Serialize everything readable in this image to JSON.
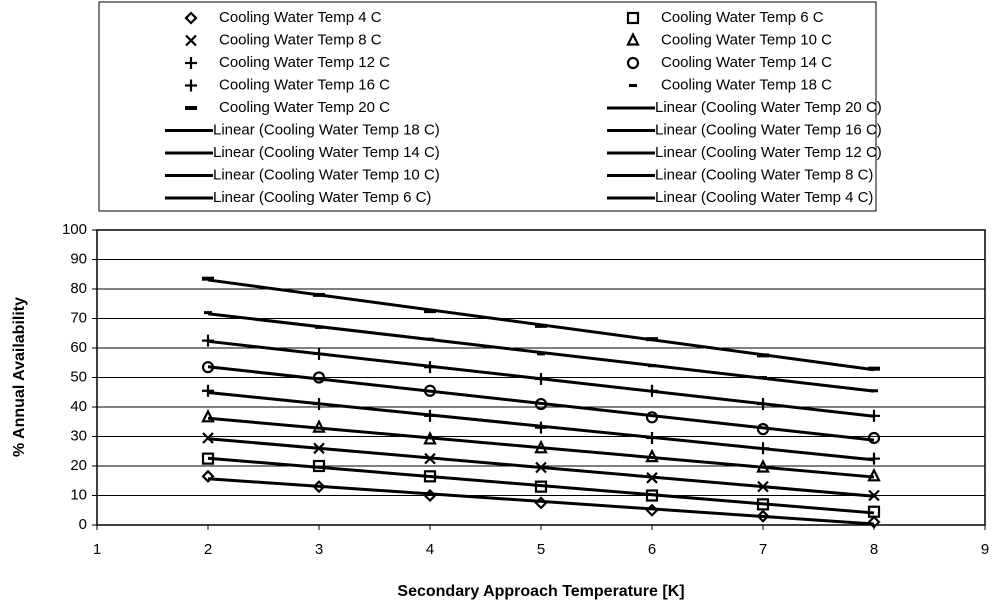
{
  "chart_data": {
    "type": "scatter",
    "x_label": "Secondary Approach Temperature [K]",
    "y_label": "% Annual Availability",
    "x": [
      2,
      3,
      4,
      5,
      6,
      7,
      8
    ],
    "xlim": [
      1,
      9
    ],
    "xticks": [
      1,
      2,
      3,
      4,
      5,
      6,
      7,
      8,
      9
    ],
    "ylim": [
      0,
      100
    ],
    "yticks": [
      0,
      10,
      20,
      30,
      40,
      50,
      60,
      70,
      80,
      90,
      100
    ],
    "grid": true,
    "trendline": "linear",
    "legend": "top",
    "series": [
      {
        "name": "Cooling Water Temp 4 C",
        "trendline_name": "Linear (Cooling Water Temp 4 C)",
        "marker": "diamond",
        "color": "#000000",
        "values": [
          16.5,
          13,
          10,
          7.5,
          5,
          3,
          1
        ]
      },
      {
        "name": "Cooling Water Temp 6 C",
        "trendline_name": "Linear (Cooling Water Temp 6 C)",
        "marker": "square",
        "color": "#000000",
        "values": [
          22.5,
          20,
          16.5,
          13,
          10,
          7,
          4.5
        ]
      },
      {
        "name": "Cooling Water Temp 8 C",
        "trendline_name": "Linear (Cooling Water Temp 8 C)",
        "marker": "x",
        "color": "#000000",
        "values": [
          29.5,
          26,
          22.5,
          19.5,
          16,
          13,
          10
        ]
      },
      {
        "name": "Cooling Water Temp 10 C",
        "trendline_name": "Linear (Cooling Water Temp 10 C)",
        "marker": "triangle",
        "color": "#000000",
        "values": [
          36.5,
          33,
          29,
          26,
          23,
          19.5,
          16.5
        ]
      },
      {
        "name": "Cooling Water Temp 12 C",
        "trendline_name": "Linear (Cooling Water Temp 12 C)",
        "marker": "plus",
        "color": "#000000",
        "values": [
          45.5,
          41,
          37,
          33,
          29.5,
          26,
          22.5
        ]
      },
      {
        "name": "Cooling Water Temp 14 C",
        "trendline_name": "Linear (Cooling Water Temp 14 C)",
        "marker": "circle",
        "color": "#000000",
        "values": [
          53.5,
          50,
          45.5,
          41,
          36.5,
          32.5,
          29.5
        ]
      },
      {
        "name": "Cooling Water Temp 16 C",
        "trendline_name": "Linear (Cooling Water Temp 16 C)",
        "marker": "plus",
        "color": "#000000",
        "values": [
          62.5,
          58,
          53.5,
          49.5,
          45.5,
          41,
          37
        ]
      },
      {
        "name": "Cooling Water Temp 18 C",
        "trendline_name": "Linear (Cooling Water Temp 18 C)",
        "marker": "dash-small",
        "color": "#000000",
        "values": [
          72,
          67,
          63,
          58,
          54,
          50,
          45.5
        ]
      },
      {
        "name": "Cooling Water Temp 20 C",
        "trendline_name": "Linear (Cooling Water Temp 20 C)",
        "marker": "dash",
        "color": "#000000",
        "values": [
          83.5,
          78,
          72.5,
          67.5,
          63,
          57.5,
          53
        ]
      }
    ]
  }
}
